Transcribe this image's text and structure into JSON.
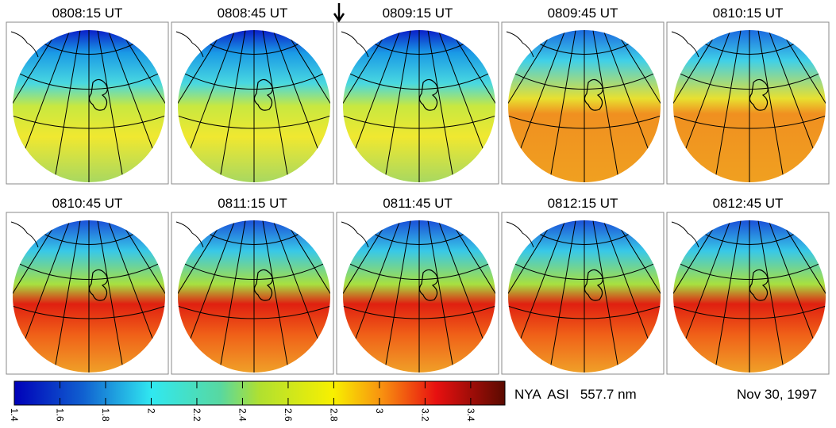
{
  "panels": [
    {
      "title": "0808:15 UT"
    },
    {
      "title": "0808:45 UT"
    },
    {
      "title": "0809:15 UT"
    },
    {
      "title": "0809:45 UT"
    },
    {
      "title": "0810:15 UT"
    },
    {
      "title": "0810:45 UT"
    },
    {
      "title": "0811:15 UT"
    },
    {
      "title": "0811:45 UT"
    },
    {
      "title": "0812:15 UT"
    },
    {
      "title": "0812:45 UT"
    }
  ],
  "colorbar": {
    "clim": [
      1.4,
      3.55
    ],
    "ticks": [
      1.4,
      1.6,
      1.8,
      2,
      2.2,
      2.4,
      2.6,
      2.8,
      3,
      3.2,
      3.4
    ]
  },
  "instrument_label": "NYA  ASI   557.7 nm",
  "date": "Nov 30, 1997"
}
